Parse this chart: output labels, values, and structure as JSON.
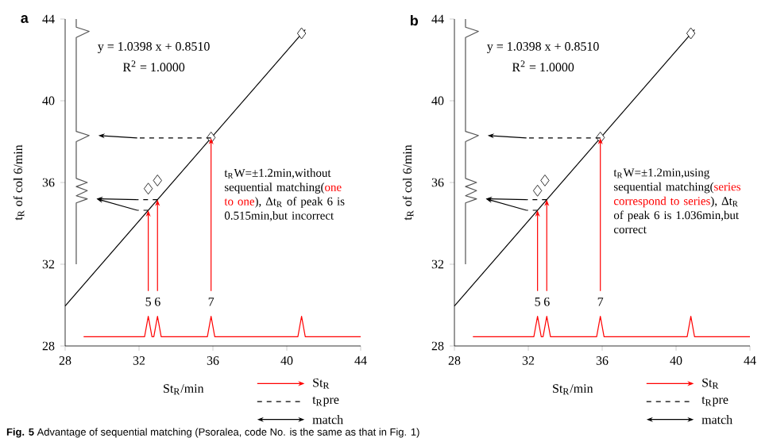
{
  "chart_data": [
    {
      "type": "scatter",
      "title": "a",
      "xlabel": "St$_{R}$/min",
      "ylabel": "t$_{R}$ of col 6/min",
      "xlim": [
        28,
        44
      ],
      "ylim": [
        28,
        44
      ],
      "xticks": [
        28,
        32,
        36,
        40,
        44
      ],
      "yticks": [
        28,
        32,
        36,
        40,
        44
      ],
      "series": [
        {
          "type": "line",
          "color": "#555555",
          "line_style": "solid",
          "marker": "none",
          "x": [
            28.6,
            28.6,
            29.2,
            28.6,
            29.2,
            28.6,
            29.2,
            28.6,
            28.6,
            29.3,
            28.6,
            28.6,
            29.3,
            28.6,
            28.6
          ],
          "values": [
            32,
            35.0,
            35.2,
            35.35,
            35.6,
            35.8,
            36.0,
            36.2,
            38.0,
            38.3,
            38.5,
            43.1,
            43.4,
            43.6,
            44
          ]
        },
        {
          "type": "line",
          "color": "#ff0000",
          "line_style": "solid",
          "marker": "none",
          "x": [
            29,
            32.3,
            32.5,
            32.7,
            32.8,
            33.0,
            33.2,
            35.7,
            35.9,
            36.1,
            40.6,
            40.8,
            41.0,
            44
          ],
          "values": [
            28.45,
            28.45,
            29.45,
            28.45,
            28.45,
            29.45,
            28.45,
            28.45,
            29.45,
            28.45,
            28.45,
            29.45,
            28.45,
            28.45
          ]
        },
        {
          "type": "line",
          "color": "#000000",
          "line_style": "solid",
          "marker": "none",
          "x": [
            28,
            41
          ],
          "values": [
            29.96,
            43.48
          ]
        },
        {
          "color": "#000000",
          "marker": "diamond",
          "x": [
            32.5,
            33.0,
            35.9,
            40.8
          ],
          "values": [
            35.7,
            36.1,
            38.2,
            43.3
          ]
        }
      ],
      "annotations": [
        "y = 1.0398 x + 0.8510",
        "R$^{2}$ = 1.0000",
        "t$_{R}$W=±1.2min,without sequential matching(",
        "one to one",
        "), Δt$_{R}$ of peak 6 is 0.515min,but incorrect",
        "St$_{R}$",
        "t$_{R}$pre",
        "match",
        {
          "text": "5",
          "x": 32.5,
          "y": 29.45
        },
        {
          "text": "6",
          "x": 33.0,
          "y": 29.45
        },
        {
          "text": "7",
          "x": 35.9,
          "y": 29.45
        },
        "**Fig. 5** Advantage of sequential matching (Psoralea, code No. is the same as that in Fig. 1)"
      ]
    },
    {
      "type": "scatter",
      "title": "b",
      "xlabel": "St$_{R}$/min",
      "ylabel": "t$_{R}$ of col 6/min",
      "xlim": [
        28,
        44
      ],
      "ylim": [
        28,
        44
      ],
      "xticks": [
        28,
        32,
        36,
        40,
        44
      ],
      "yticks": [
        28,
        32,
        36,
        40,
        44
      ],
      "series": [
        {
          "type": "line",
          "color": "#555555",
          "line_style": "solid",
          "marker": "none",
          "x": [
            28.6,
            28.6,
            29.2,
            28.6,
            29.2,
            28.6,
            29.2,
            28.6,
            28.6,
            29.3,
            28.6,
            28.6,
            29.3,
            28.6,
            28.6
          ],
          "values": [
            32,
            35.0,
            35.2,
            35.35,
            35.6,
            35.8,
            36.0,
            36.2,
            38.0,
            38.3,
            38.5,
            43.1,
            43.4,
            43.6,
            44
          ]
        },
        {
          "type": "line",
          "color": "#ff0000",
          "line_style": "solid",
          "marker": "none",
          "x": [
            29,
            32.3,
            32.5,
            32.7,
            32.8,
            33.0,
            33.2,
            35.7,
            35.9,
            36.1,
            40.6,
            40.8,
            41.0,
            44
          ],
          "values": [
            28.45,
            28.45,
            29.45,
            28.45,
            28.45,
            29.45,
            28.45,
            28.45,
            29.45,
            28.45,
            28.45,
            29.45,
            28.45,
            28.45
          ]
        },
        {
          "type": "line",
          "color": "#000000",
          "line_style": "solid",
          "marker": "none",
          "x": [
            28,
            41
          ],
          "values": [
            29.96,
            43.48
          ]
        },
        {
          "color": "#000000",
          "marker": "diamond",
          "x": [
            32.5,
            32.9,
            35.9,
            40.8
          ],
          "values": [
            35.6,
            36.1,
            38.2,
            43.3
          ]
        }
      ],
      "annotations": [
        "y = 1.0398 x + 0.8510",
        "R$^{2}$ = 1.0000",
        "t$_{R}$W=±1.2min,using sequential matching(",
        "series correspond to series",
        "), Δt$_{R}$ of peak 6 is 1.036min,but correct",
        "St$_{R}$",
        "t$_{R}$pre",
        "match",
        {
          "text": "5",
          "x": 32.5,
          "y": 29.45
        },
        {
          "text": "6",
          "x": 33.0,
          "y": 29.45
        },
        {
          "text": "7",
          "x": 35.9,
          "y": 29.45
        }
      ]
    }
  ]
}
